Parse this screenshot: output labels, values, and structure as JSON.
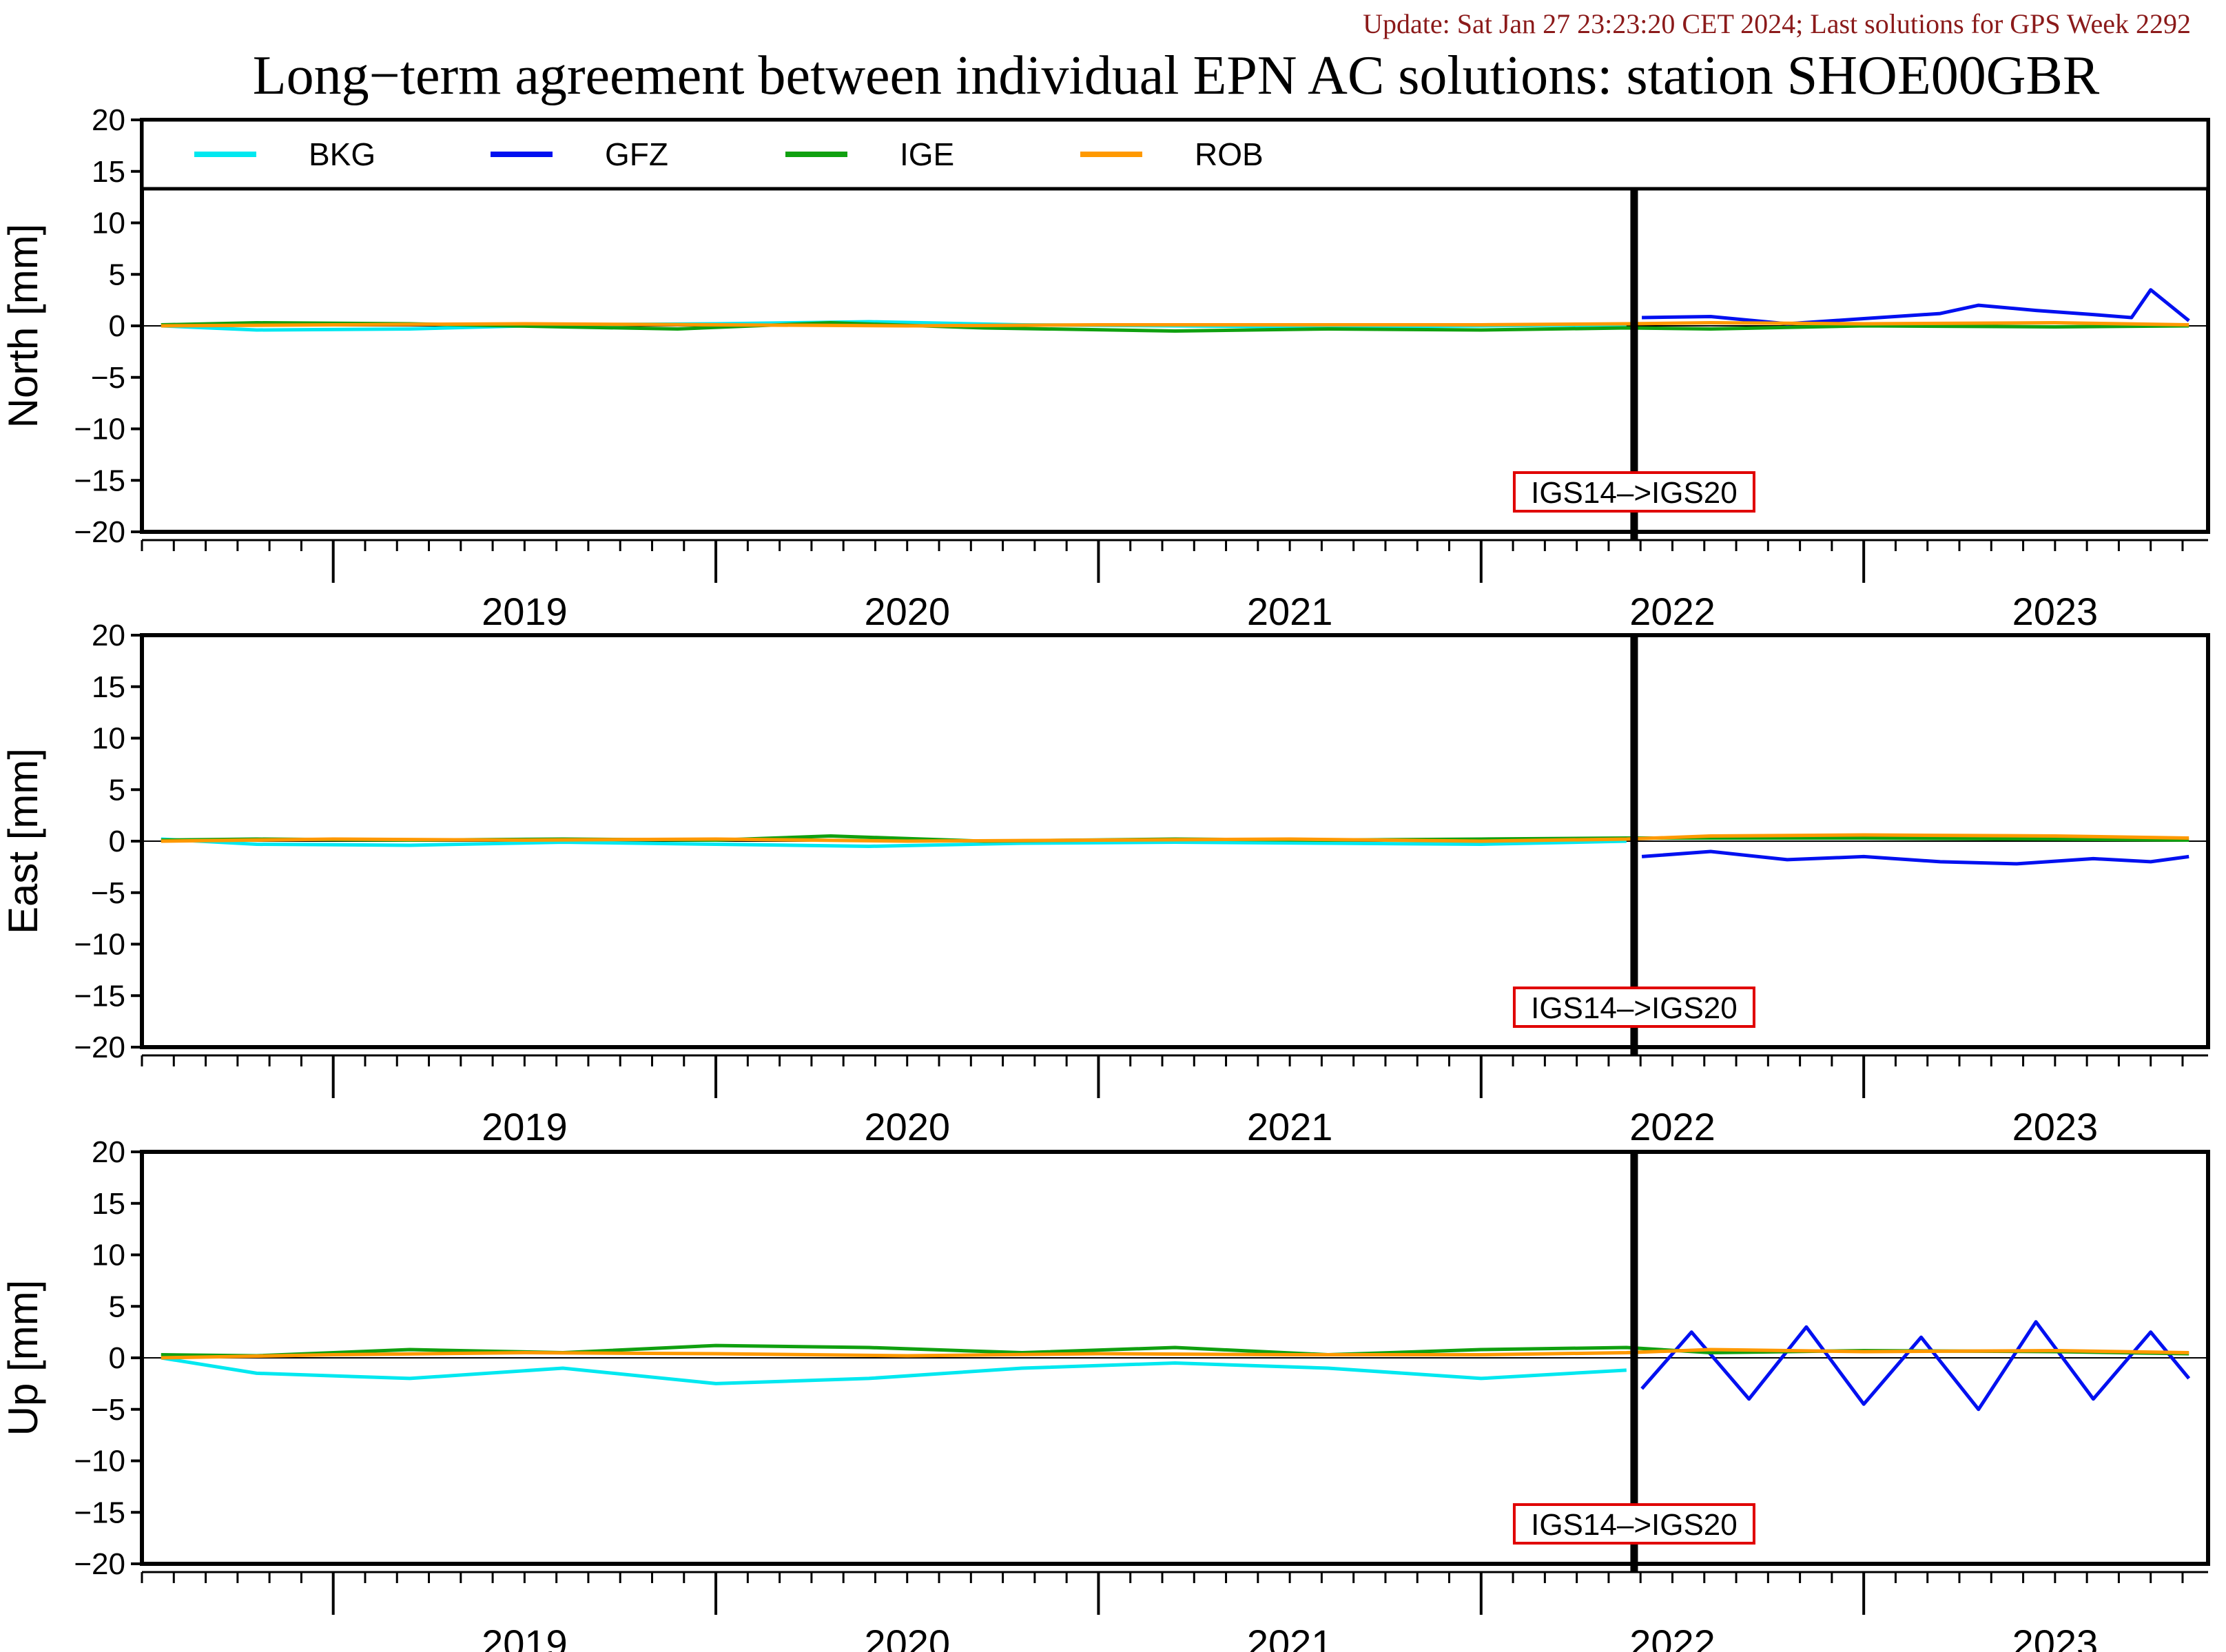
{
  "header": {
    "update": "Update: Sat Jan 27 23:23:20 CET 2024; Last solutions for GPS Week 2292",
    "title": "Long−term agreement between individual EPN AC solutions: station SHOE00GBR"
  },
  "colors": {
    "BKG": "#00e8f0",
    "GFZ": "#0010f0",
    "IGE": "#10a010",
    "ROB": "#ff9900",
    "annotation_border": "#e00000",
    "update_text": "#8b1a1a"
  },
  "chart_data": {
    "type": "line",
    "legend": {
      "placement": "top",
      "entries": [
        {
          "name": "BKG"
        },
        {
          "name": "GFZ"
        },
        {
          "name": "IGE"
        },
        {
          "name": "ROB"
        }
      ]
    },
    "xlim": [
      2018.5,
      2023.9
    ],
    "x_ticks": [
      2019,
      2020,
      2021,
      2022,
      2023
    ],
    "ylim": [
      -20,
      20
    ],
    "y_ticks": [
      20,
      15,
      10,
      5,
      0,
      -5,
      -10,
      -15,
      -20
    ],
    "frame_change": {
      "x": 2022.4,
      "label": "IGS14–>IGS20"
    },
    "panels": [
      {
        "ylabel": "North [mm]",
        "has_legend": true,
        "series": [
          {
            "name": "BKG",
            "points": [
              [
                2018.55,
                0.0
              ],
              [
                2018.8,
                -0.4
              ],
              [
                2019.2,
                -0.3
              ],
              [
                2019.6,
                0.1
              ],
              [
                2020.0,
                0.2
              ],
              [
                2020.4,
                0.4
              ],
              [
                2020.8,
                0.1
              ],
              [
                2021.2,
                0.0
              ],
              [
                2021.6,
                -0.1
              ],
              [
                2022.0,
                0.0
              ],
              [
                2022.38,
                0.1
              ]
            ]
          },
          {
            "name": "GFZ",
            "points": [
              [
                2022.42,
                0.8
              ],
              [
                2022.6,
                0.9
              ],
              [
                2022.8,
                0.2
              ],
              [
                2023.0,
                0.7
              ],
              [
                2023.2,
                1.2
              ],
              [
                2023.3,
                2.0
              ],
              [
                2023.45,
                1.5
              ],
              [
                2023.6,
                1.1
              ],
              [
                2023.7,
                0.8
              ],
              [
                2023.75,
                3.5
              ],
              [
                2023.85,
                0.5
              ]
            ]
          },
          {
            "name": "IGE",
            "points": [
              [
                2018.55,
                0.1
              ],
              [
                2018.8,
                0.3
              ],
              [
                2019.2,
                0.2
              ],
              [
                2019.6,
                -0.1
              ],
              [
                2019.9,
                -0.3
              ],
              [
                2020.3,
                0.3
              ],
              [
                2020.7,
                -0.2
              ],
              [
                2021.2,
                -0.5
              ],
              [
                2021.6,
                -0.3
              ],
              [
                2022.0,
                -0.4
              ],
              [
                2022.38,
                -0.2
              ],
              [
                2022.6,
                -0.3
              ],
              [
                2023.0,
                0.0
              ],
              [
                2023.5,
                -0.1
              ],
              [
                2023.85,
                0.0
              ]
            ]
          },
          {
            "name": "ROB",
            "points": [
              [
                2018.55,
                0.0
              ],
              [
                2019.0,
                0.1
              ],
              [
                2019.5,
                0.2
              ],
              [
                2020.0,
                0.1
              ],
              [
                2020.5,
                0.0
              ],
              [
                2021.0,
                0.1
              ],
              [
                2021.5,
                0.1
              ],
              [
                2022.0,
                0.1
              ],
              [
                2022.38,
                0.2
              ],
              [
                2022.6,
                0.3
              ],
              [
                2023.0,
                0.2
              ],
              [
                2023.5,
                0.3
              ],
              [
                2023.85,
                0.1
              ]
            ]
          }
        ]
      },
      {
        "ylabel": "East [mm]",
        "has_legend": false,
        "series": [
          {
            "name": "BKG",
            "points": [
              [
                2018.55,
                0.2
              ],
              [
                2018.8,
                -0.3
              ],
              [
                2019.2,
                -0.4
              ],
              [
                2019.6,
                -0.1
              ],
              [
                2020.0,
                -0.3
              ],
              [
                2020.4,
                -0.5
              ],
              [
                2020.8,
                -0.2
              ],
              [
                2021.2,
                -0.1
              ],
              [
                2021.6,
                -0.2
              ],
              [
                2022.0,
                -0.3
              ],
              [
                2022.38,
                0.0
              ]
            ]
          },
          {
            "name": "GFZ",
            "points": [
              [
                2022.42,
                -1.5
              ],
              [
                2022.6,
                -1.0
              ],
              [
                2022.8,
                -1.8
              ],
              [
                2023.0,
                -1.5
              ],
              [
                2023.2,
                -2.0
              ],
              [
                2023.4,
                -2.2
              ],
              [
                2023.6,
                -1.7
              ],
              [
                2023.75,
                -2.0
              ],
              [
                2023.85,
                -1.5
              ]
            ]
          },
          {
            "name": "IGE",
            "points": [
              [
                2018.55,
                0.1
              ],
              [
                2018.8,
                0.2
              ],
              [
                2019.2,
                0.1
              ],
              [
                2019.6,
                0.2
              ],
              [
                2020.0,
                0.1
              ],
              [
                2020.3,
                0.5
              ],
              [
                2020.7,
                0.0
              ],
              [
                2021.2,
                0.2
              ],
              [
                2021.6,
                0.1
              ],
              [
                2022.0,
                0.2
              ],
              [
                2022.38,
                0.3
              ],
              [
                2022.6,
                0.3
              ],
              [
                2023.0,
                0.3
              ],
              [
                2023.5,
                0.2
              ],
              [
                2023.85,
                0.1
              ]
            ]
          },
          {
            "name": "ROB",
            "points": [
              [
                2018.55,
                0.0
              ],
              [
                2019.0,
                0.2
              ],
              [
                2019.5,
                0.1
              ],
              [
                2020.0,
                0.2
              ],
              [
                2020.5,
                0.0
              ],
              [
                2021.0,
                0.1
              ],
              [
                2021.5,
                0.2
              ],
              [
                2022.0,
                0.0
              ],
              [
                2022.38,
                0.2
              ],
              [
                2022.6,
                0.5
              ],
              [
                2023.0,
                0.6
              ],
              [
                2023.5,
                0.5
              ],
              [
                2023.85,
                0.3
              ]
            ]
          }
        ]
      },
      {
        "ylabel": "Up [mm]",
        "has_legend": false,
        "series": [
          {
            "name": "BKG",
            "points": [
              [
                2018.55,
                0.0
              ],
              [
                2018.8,
                -1.5
              ],
              [
                2019.2,
                -2.0
              ],
              [
                2019.6,
                -1.0
              ],
              [
                2020.0,
                -2.5
              ],
              [
                2020.4,
                -2.0
              ],
              [
                2020.8,
                -1.0
              ],
              [
                2021.2,
                -0.5
              ],
              [
                2021.6,
                -1.0
              ],
              [
                2022.0,
                -2.0
              ],
              [
                2022.38,
                -1.2
              ]
            ]
          },
          {
            "name": "GFZ",
            "points": [
              [
                2022.42,
                -3.0
              ],
              [
                2022.55,
                2.5
              ],
              [
                2022.7,
                -4.0
              ],
              [
                2022.85,
                3.0
              ],
              [
                2023.0,
                -4.5
              ],
              [
                2023.15,
                2.0
              ],
              [
                2023.3,
                -5.0
              ],
              [
                2023.45,
                3.5
              ],
              [
                2023.6,
                -4.0
              ],
              [
                2023.75,
                2.5
              ],
              [
                2023.85,
                -2.0
              ]
            ]
          },
          {
            "name": "IGE",
            "points": [
              [
                2018.55,
                0.3
              ],
              [
                2018.8,
                0.2
              ],
              [
                2019.2,
                0.8
              ],
              [
                2019.6,
                0.5
              ],
              [
                2020.0,
                1.2
              ],
              [
                2020.4,
                1.0
              ],
              [
                2020.8,
                0.5
              ],
              [
                2021.2,
                1.0
              ],
              [
                2021.6,
                0.3
              ],
              [
                2022.0,
                0.8
              ],
              [
                2022.38,
                1.0
              ],
              [
                2022.6,
                0.5
              ],
              [
                2023.0,
                0.7
              ],
              [
                2023.5,
                0.6
              ],
              [
                2023.85,
                0.4
              ]
            ]
          },
          {
            "name": "ROB",
            "points": [
              [
                2018.55,
                0.0
              ],
              [
                2019.0,
                0.3
              ],
              [
                2019.5,
                0.5
              ],
              [
                2020.0,
                0.4
              ],
              [
                2020.5,
                0.2
              ],
              [
                2021.0,
                0.4
              ],
              [
                2021.5,
                0.3
              ],
              [
                2022.0,
                0.3
              ],
              [
                2022.38,
                0.5
              ],
              [
                2022.6,
                0.8
              ],
              [
                2023.0,
                0.6
              ],
              [
                2023.5,
                0.7
              ],
              [
                2023.85,
                0.5
              ]
            ]
          }
        ]
      }
    ]
  }
}
